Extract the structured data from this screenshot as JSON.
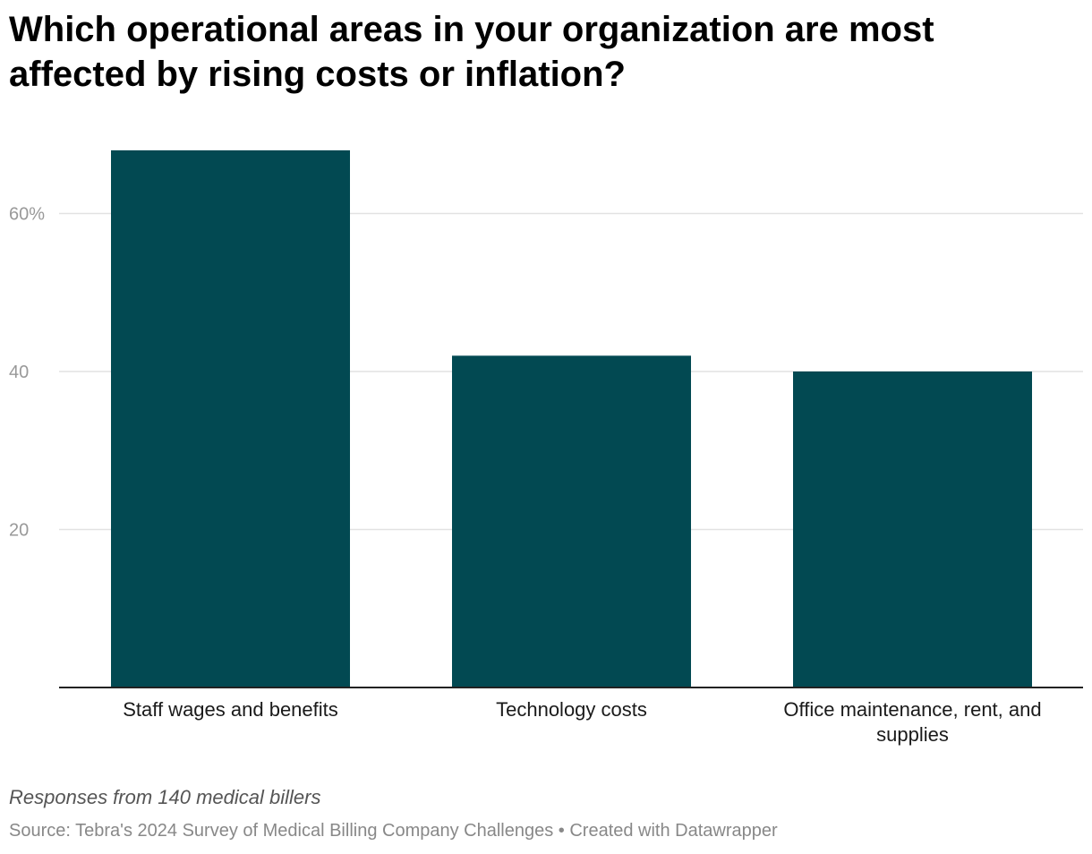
{
  "title": "Which operational areas in your organization are most affected by rising costs or inflation?",
  "footer": {
    "note": "Responses from 140 medical billers",
    "source": "Source: Tebra's 2024 Survey of Medical Billing Company Challenges • Created with Datawrapper"
  },
  "colors": {
    "bar": "#024952",
    "grid": "#e2e2e2",
    "axis": "#222222"
  },
  "chart_data": {
    "type": "bar",
    "categories": [
      "Staff wages and benefits",
      "Technology costs",
      "Office maintenance, rent, and supplies"
    ],
    "values": [
      68,
      42,
      40
    ],
    "ylim": [
      0,
      70
    ],
    "yticks": [
      {
        "value": 20,
        "label": "20"
      },
      {
        "value": 40,
        "label": "40"
      },
      {
        "value": 60,
        "label": "60%"
      }
    ],
    "grid": true,
    "xlabel": "",
    "ylabel": ""
  }
}
